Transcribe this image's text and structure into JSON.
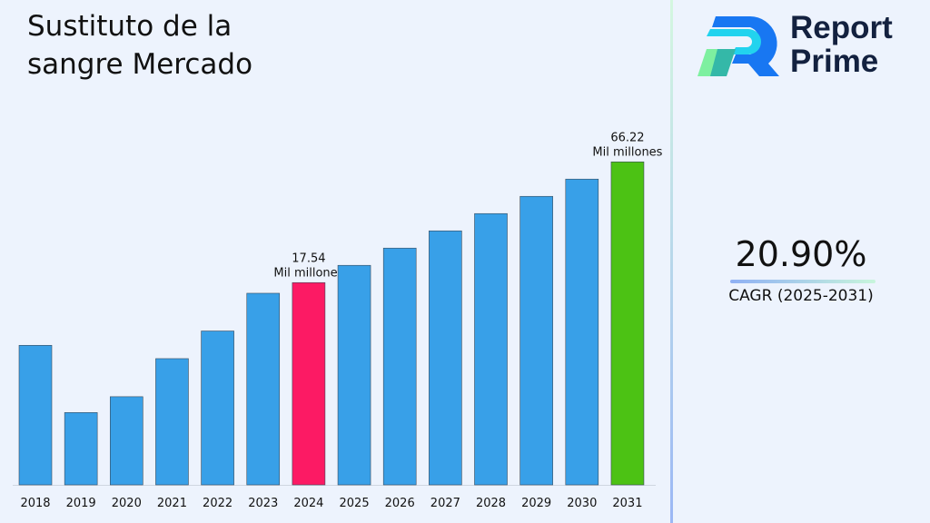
{
  "title": "Sustituto de la sangre Mercado",
  "brand": {
    "line1": "Report",
    "line2": "Prime"
  },
  "cagr": {
    "value": "20.90%",
    "label": "CAGR (2025-2031)"
  },
  "colors": {
    "bar": "#38a0e8",
    "highlight_2024": "#fc1a64",
    "highlight_2031": "#4cc214",
    "background": "#edf3fd"
  },
  "chart_data": {
    "type": "bar",
    "title": "Sustituto de la sangre Mercado",
    "categories": [
      "2018",
      "2019",
      "2020",
      "2021",
      "2022",
      "2023",
      "2024",
      "2025",
      "2026",
      "2027",
      "2028",
      "2029",
      "2030",
      "2031"
    ],
    "values": [
      8.8,
      4.2,
      5.0,
      7.6,
      10.3,
      15.6,
      17.54,
      21.21,
      25.64,
      31.0,
      37.48,
      45.31,
      54.78,
      66.22
    ],
    "unit": "Mil millones",
    "annotations": [
      {
        "category": "2024",
        "value_label": "17.54",
        "unit_label": "Mil millones"
      },
      {
        "category": "2031",
        "value_label": "66.22",
        "unit_label": "Mil millones"
      }
    ],
    "yaxis_visible": false,
    "grid": false,
    "legend": "none"
  }
}
